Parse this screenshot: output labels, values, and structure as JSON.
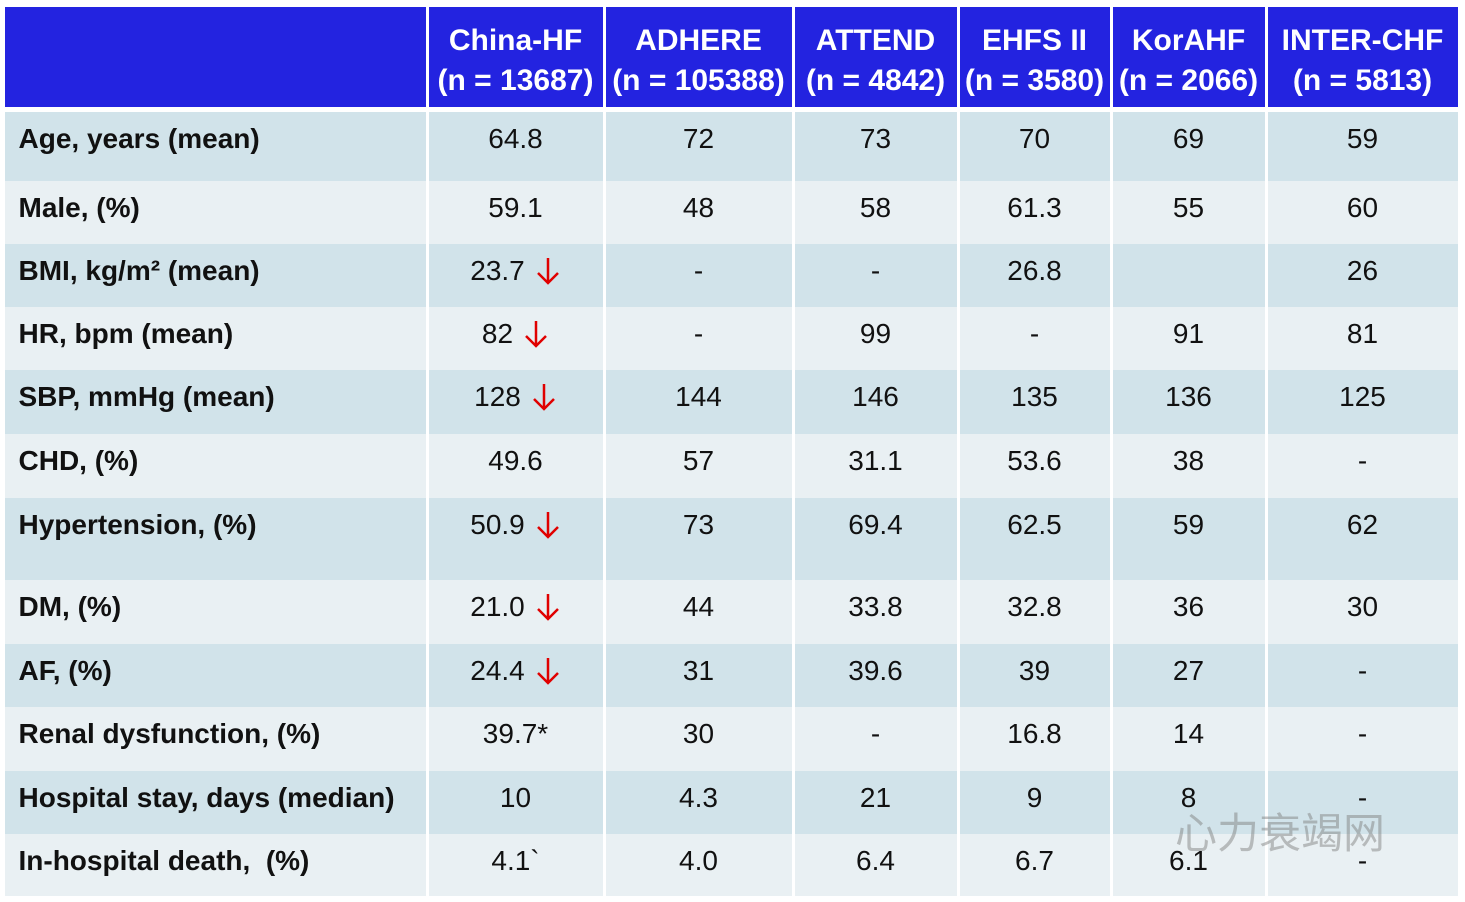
{
  "table": {
    "columns": [
      {
        "name": "China-HF",
        "n": "(n = 13687)"
      },
      {
        "name": "ADHERE",
        "n": "(n = 105388)"
      },
      {
        "name": "ATTEND",
        "n": "(n = 4842)"
      },
      {
        "name": "EHFS II",
        "n": "(n = 3580)"
      },
      {
        "name": "KorAHF",
        "n": "(n = 2066)"
      },
      {
        "name": "INTER-CHF",
        "n": "(n = 5813)"
      }
    ],
    "rows": [
      {
        "label": "Age, years (mean)",
        "cells": [
          "64.8",
          "72",
          "73",
          "70",
          "69",
          "59"
        ]
      },
      {
        "label": "Male, (%)",
        "cells": [
          "59.1",
          "48",
          "58",
          "61.3",
          "55",
          "60"
        ]
      },
      {
        "label": "BMI, kg/m² (mean)",
        "cells": [
          "23.7",
          "-",
          "-",
          "26.8",
          null,
          "26"
        ]
      },
      {
        "label": "HR, bpm (mean)",
        "cells": [
          "82",
          "-",
          "99",
          "-",
          "91",
          "81"
        ]
      },
      {
        "label": "SBP, mmHg (mean)",
        "cells": [
          "128",
          "144",
          "146",
          "135",
          "136",
          "125"
        ]
      },
      {
        "label": "CHD, (%)",
        "cells": [
          "49.6",
          "57",
          "31.1",
          "53.6",
          "38",
          "-"
        ]
      },
      {
        "label": "Hypertension, (%)",
        "cells": [
          "50.9",
          "73",
          "69.4",
          "62.5",
          "59",
          "62"
        ]
      },
      {
        "label": "DM, (%)",
        "cells": [
          "21.0",
          "44",
          "33.8",
          "32.8",
          "36",
          "30"
        ]
      },
      {
        "label": "AF, (%)",
        "cells": [
          "24.4",
          "31",
          "39.6",
          "39",
          "27",
          "-"
        ]
      },
      {
        "label": "Renal dysfunction, (%)",
        "cells": [
          "39.7*",
          "30",
          "-",
          "16.8",
          "14",
          "-"
        ]
      },
      {
        "label": "Hospital stay, days (median)",
        "cells": [
          "10",
          "4.3",
          "21",
          "9",
          "8",
          "-"
        ]
      },
      {
        "label": "In-hospital death,  (%)",
        "cells": [
          "4.1`",
          "4.0",
          "6.4",
          "6.7",
          "6.1",
          "-"
        ]
      }
    ]
  },
  "watermark": "心力衰竭网"
}
